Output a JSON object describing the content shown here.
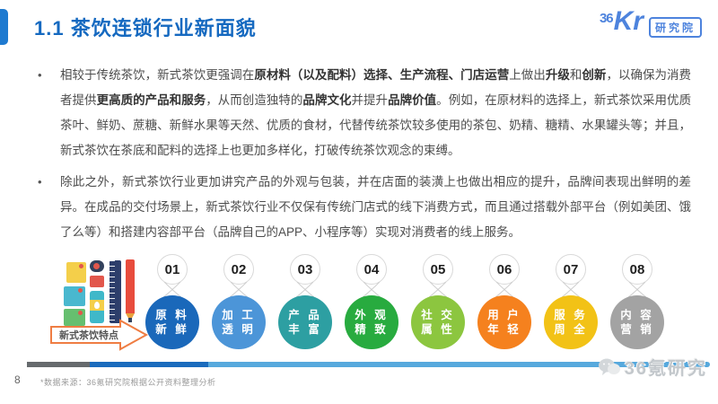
{
  "header": {
    "title": "1.1 茶饮连锁行业新面貌",
    "logo": {
      "num": "36",
      "kr": "Kr",
      "badge": "研究院"
    }
  },
  "bullets": [
    {
      "segments": [
        {
          "t": "相较于传统茶饮，新式茶饮更强调在",
          "b": false
        },
        {
          "t": "原材料（以及配料）选择、生产流程、门店运营",
          "b": true
        },
        {
          "t": "上做出",
          "b": false
        },
        {
          "t": "升级",
          "b": true
        },
        {
          "t": "和",
          "b": false
        },
        {
          "t": "创新",
          "b": true
        },
        {
          "t": "，以确保为消费者提供",
          "b": false
        },
        {
          "t": "更高质的产品和服务",
          "b": true
        },
        {
          "t": "，从而创造独特的",
          "b": false
        },
        {
          "t": "品牌文化",
          "b": true
        },
        {
          "t": "并提升",
          "b": false
        },
        {
          "t": "品牌价值",
          "b": true
        },
        {
          "t": "。例如，在原材料的选择上，新式茶饮采用优质茶叶、鲜奶、蔗糖、新鲜水果等天然、优质的食材，代替传统茶饮较多使用的茶包、奶精、糖精、水果罐头等；并且，新式茶饮在茶底和配料的选择上也更加多样化，打破传统茶饮观念的束缚。",
          "b": false
        }
      ]
    },
    {
      "segments": [
        {
          "t": "除此之外，新式茶饮行业更加讲究产品的外观与包装，并在店面的装潢上也做出相应的提升，品牌间表现出鲜明的差异。在成品的交付场景上，新式茶饮行业不仅保有传统门店式的线下消费方式，而且通过搭载外部平台（例如美团、饿了么等）和搭建内容部平台（品牌自己的APP、小程序等）实现对消费者的线上服务。",
          "b": false
        }
      ]
    }
  ],
  "diagram": {
    "arrow_label": "新式茶饮特点",
    "items": [
      {
        "num": "01",
        "line1": "原 料",
        "line2": "新 鲜",
        "color": "#1a68ba"
      },
      {
        "num": "02",
        "line1": "加 工",
        "line2": "透 明",
        "color": "#4c95d8"
      },
      {
        "num": "03",
        "line1": "产 品",
        "line2": "丰 富",
        "color": "#2d9fa2"
      },
      {
        "num": "04",
        "line1": "外 观",
        "line2": "精 致",
        "color": "#28ab3f"
      },
      {
        "num": "05",
        "line1": "社 交",
        "line2": "属 性",
        "color": "#8cc63f"
      },
      {
        "num": "06",
        "line1": "用 户",
        "line2": "年 轻",
        "color": "#f5811e"
      },
      {
        "num": "07",
        "line1": "服 务",
        "line2": "周 全",
        "color": "#f2c216"
      },
      {
        "num": "08",
        "line1": "内 容",
        "line2": "营 销",
        "color": "#a3a3a3"
      }
    ]
  },
  "footer": {
    "page": "8",
    "note": "*数据来源：36氪研究院根据公开资料整理分析",
    "watermark": "36氪研究",
    "bar_colors": {
      "seg1": "#666a6d",
      "seg2": "#1a6bbd",
      "seg3": "#57a9dd"
    }
  },
  "colors": {
    "accent": "#1e7ad0",
    "title": "#1569c0",
    "logo": "#4d83dd",
    "arrow_border": "#ef7d43"
  }
}
